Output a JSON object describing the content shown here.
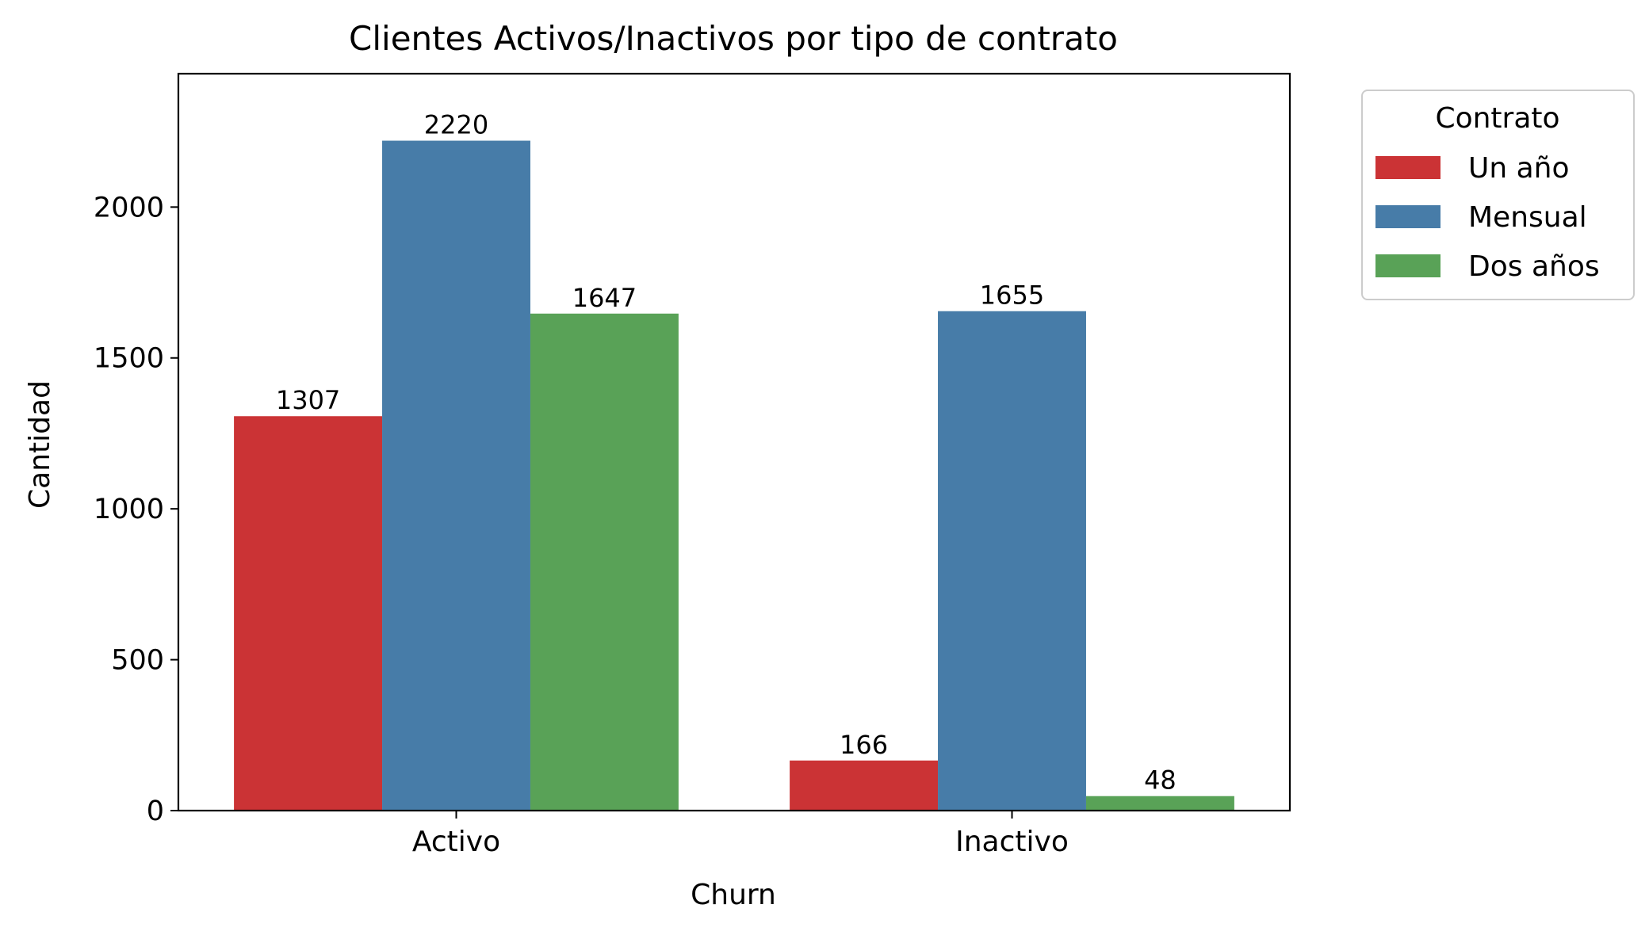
{
  "chart_data": {
    "type": "bar",
    "title": "Clientes Activos/Inactivos por tipo de contrato",
    "xlabel": "Churn",
    "ylabel": "Cantidad",
    "categories": [
      "Activo",
      "Inactivo"
    ],
    "ylim": [
      0,
      2442
    ],
    "yticks": [
      0,
      500,
      1000,
      1500,
      2000
    ],
    "grid": false,
    "legend": {
      "title": "Contrato",
      "placement": "outside-right-top"
    },
    "series": [
      {
        "name": "Un año",
        "values": [
          1307,
          166
        ],
        "color": "#cb3335"
      },
      {
        "name": "Mensual",
        "values": [
          2220,
          1655
        ],
        "color": "#477ca8"
      },
      {
        "name": "Dos años",
        "values": [
          1647,
          48
        ],
        "color": "#59a257"
      }
    ]
  }
}
